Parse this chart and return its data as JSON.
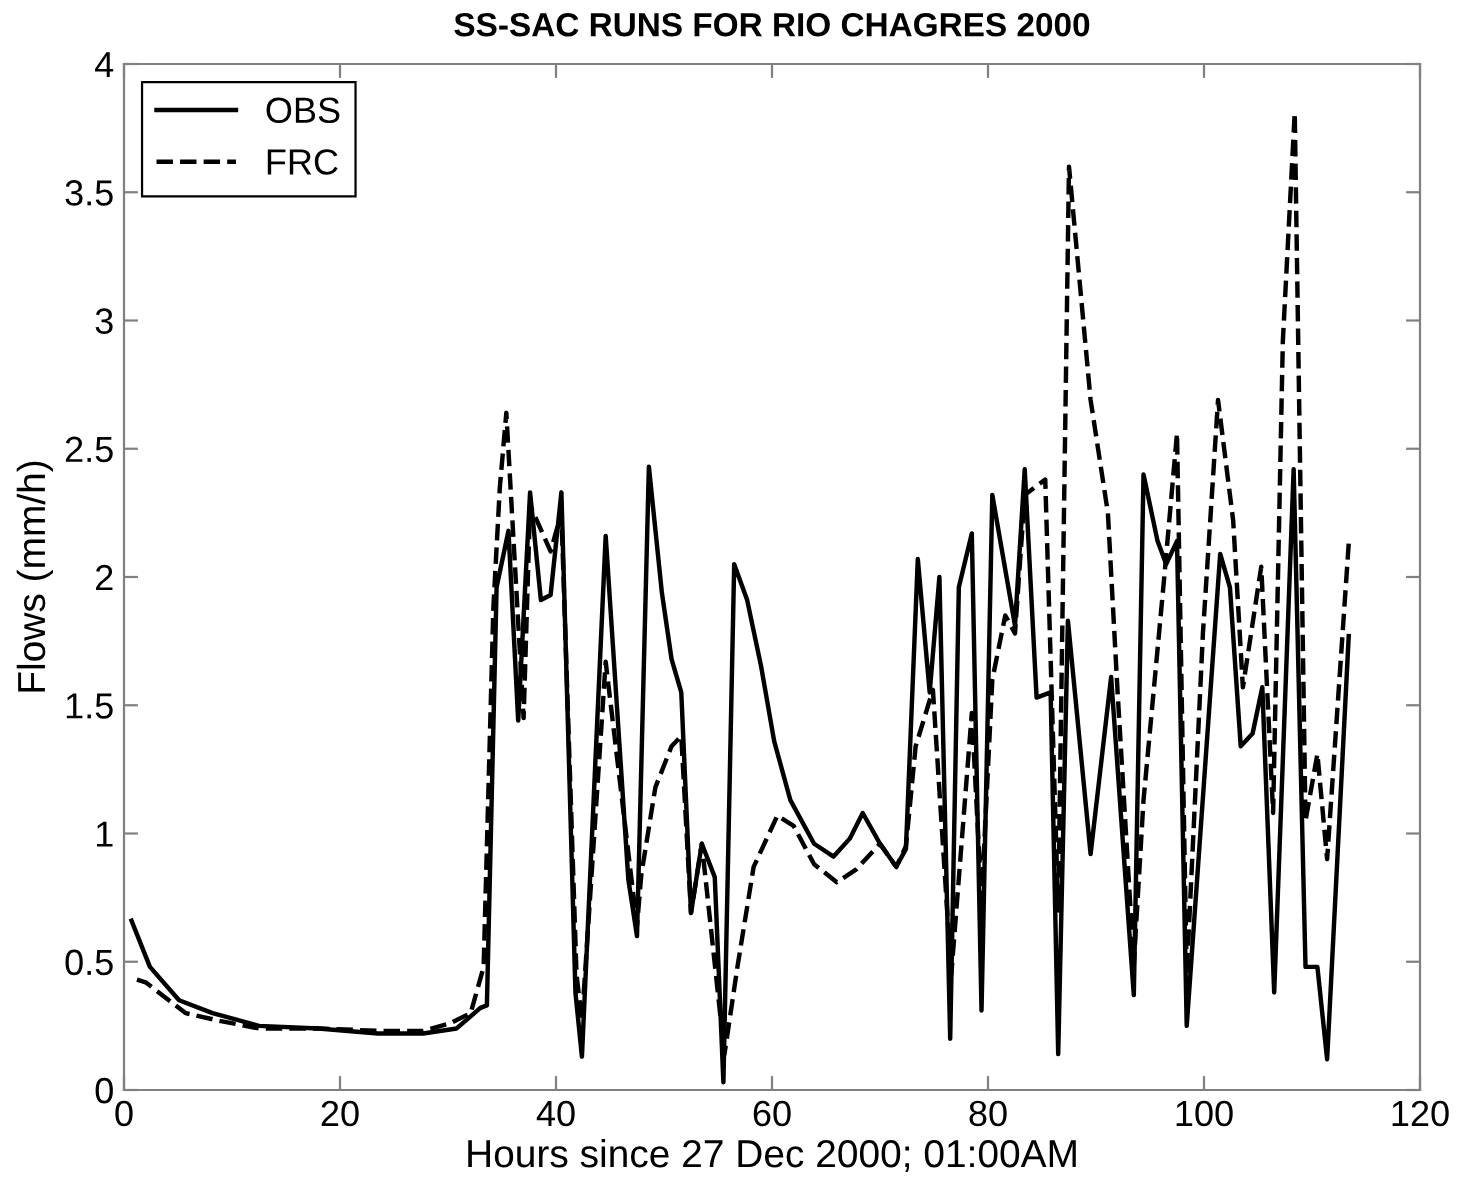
{
  "chart_data": {
    "type": "line",
    "title": "SS-SAC RUNS FOR RIO CHAGRES 2000",
    "xlabel": "Hours since 27 Dec 2000; 01:00AM",
    "ylabel": "Flows (mm/h)",
    "xlim": [
      0,
      120
    ],
    "xticks": [
      0,
      20,
      40,
      60,
      80,
      100,
      120
    ],
    "ylim": [
      0,
      4
    ],
    "yticks": [
      0,
      0.5,
      1,
      1.5,
      2,
      2.5,
      3,
      3.5,
      4
    ],
    "grid": false,
    "legend": "top left",
    "series": [
      {
        "name": "OBS",
        "color": "#000000",
        "line_style": "solid",
        "x": [
          0.7,
          2.4,
          5.1,
          8.2,
          12.5,
          18,
          23.5,
          27.7,
          30.8,
          33,
          33.6,
          34.5,
          35.6,
          36.5,
          37.6,
          38.6,
          39.5,
          40.5,
          41.8,
          42.4,
          44.6,
          46.7,
          47.5,
          48.6,
          49.8,
          50.7,
          51.6,
          52.5,
          53.5,
          54.7,
          55.5,
          56.5,
          57.7,
          59,
          60.2,
          61.7,
          63.9,
          65.7,
          67.2,
          68.4,
          70,
          71.5,
          72.4,
          73.5,
          74.6,
          75.5,
          76.5,
          77.3,
          78.5,
          79.4,
          80.4,
          82.5,
          83.4,
          84.5,
          85.8,
          86.5,
          87.4,
          89.5,
          91.4,
          93.5,
          94.4,
          95.7,
          96.5,
          97.5,
          98.4,
          101.5,
          102.4,
          103.4,
          104.5,
          105.4,
          106.5,
          108.3,
          109.4,
          110.5,
          111.4,
          113.4
        ],
        "values": [
          0.66,
          0.48,
          0.35,
          0.3,
          0.25,
          0.24,
          0.22,
          0.22,
          0.24,
          0.32,
          0.33,
          1.96,
          2.18,
          1.44,
          2.33,
          1.91,
          1.93,
          2.33,
          0.38,
          0.13,
          2.16,
          0.82,
          0.6,
          2.43,
          1.94,
          1.68,
          1.55,
          0.69,
          0.96,
          0.83,
          0.03,
          2.05,
          1.91,
          1.65,
          1.36,
          1.13,
          0.96,
          0.91,
          0.98,
          1.08,
          0.96,
          0.87,
          0.94,
          2.07,
          1.55,
          2.0,
          0.2,
          1.96,
          2.17,
          0.31,
          2.32,
          1.81,
          2.42,
          1.53,
          1.55,
          0.14,
          1.83,
          0.92,
          1.61,
          0.37,
          2.4,
          2.14,
          2.05,
          2.14,
          0.25,
          2.09,
          1.96,
          1.34,
          1.39,
          1.57,
          0.38,
          2.42,
          0.48,
          0.48,
          0.12,
          1.77
        ]
      },
      {
        "name": "FRC",
        "color": "#000000",
        "line_style": "dashed",
        "x": [
          1.2,
          2.0,
          5.7,
          8.8,
          12.5,
          18,
          23.9,
          27.7,
          30.2,
          32.1,
          33.3,
          34.2,
          34.8,
          35.4,
          37,
          37.6,
          39.5,
          40.5,
          41.9,
          42.4,
          44.6,
          47.5,
          47.9,
          49.2,
          50.7,
          51.6,
          52.5,
          53.5,
          55.6,
          56.8,
          58.3,
          60.5,
          62,
          63.9,
          66,
          67.8,
          70,
          71.5,
          72.4,
          73.3,
          74.9,
          76.6,
          78.5,
          79.4,
          80.4,
          81.6,
          82.5,
          83.4,
          85.3,
          86.5,
          87.5,
          89.5,
          91.1,
          92,
          93.5,
          94.4,
          96.3,
          97.5,
          98.4,
          99.9,
          101.3,
          102.7,
          103.6,
          105.3,
          106.4,
          107.3,
          108.4,
          109.4,
          110.5,
          111.4,
          113.4
        ],
        "values": [
          0.43,
          0.42,
          0.3,
          0.27,
          0.24,
          0.24,
          0.23,
          0.23,
          0.26,
          0.3,
          0.48,
          1.88,
          2.35,
          2.64,
          1.45,
          2.28,
          2.1,
          2.25,
          0.45,
          0.27,
          1.67,
          0.64,
          0.84,
          1.18,
          1.34,
          1.38,
          0.69,
          0.96,
          0.14,
          0.48,
          0.87,
          1.07,
          1.03,
          0.88,
          0.81,
          0.86,
          0.96,
          0.87,
          0.95,
          1.34,
          1.56,
          0.45,
          1.47,
          0.74,
          1.6,
          1.85,
          1.78,
          2.32,
          2.38,
          0.7,
          3.6,
          2.69,
          2.25,
          1.55,
          0.49,
          1.13,
          1.99,
          2.56,
          0.45,
          1.78,
          2.69,
          2.22,
          1.57,
          2.04,
          1.08,
          2.92,
          3.81,
          1.05,
          1.31,
          0.9,
          2.13
        ]
      }
    ]
  }
}
